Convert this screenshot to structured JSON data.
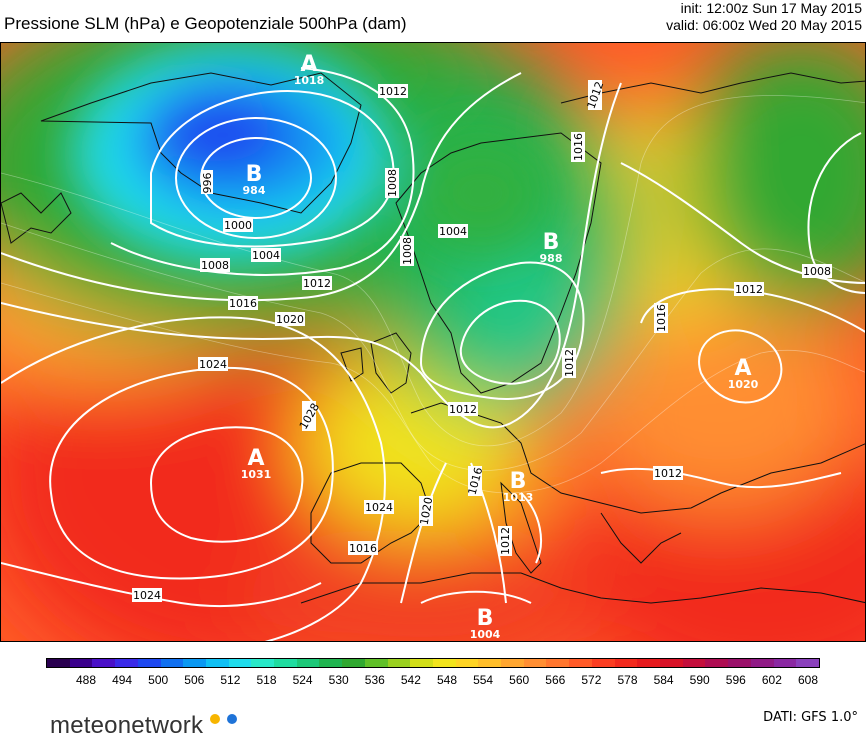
{
  "header": {
    "title": "Pressione SLM (hPa) e Geopotenziale 500hPa (dam)",
    "init": "init: 12:00z Sun 17 May 2015",
    "valid": "valid: 06:00z Wed 20 May 2015"
  },
  "map": {
    "pressure_centers": [
      {
        "type": "A",
        "value": "1018"
      },
      {
        "type": "B",
        "value": "984"
      },
      {
        "type": "B",
        "value": "988"
      },
      {
        "type": "A",
        "value": "1031"
      },
      {
        "type": "A",
        "value": "1020"
      },
      {
        "type": "B",
        "value": "1013"
      },
      {
        "type": "B",
        "value": "1004"
      }
    ],
    "isobar_labels": [
      "996",
      "1000",
      "1004",
      "1008",
      "1012",
      "1016",
      "1020",
      "1024",
      "1028",
      "1008",
      "1004",
      "1008",
      "1012",
      "1012",
      "1016",
      "1012",
      "1012",
      "1016",
      "1020",
      "1024",
      "1016",
      "1012",
      "1024",
      "1012",
      "1008",
      "1012",
      "1016",
      "1012"
    ]
  },
  "colorbar": {
    "ticks": [
      "488",
      "494",
      "500",
      "506",
      "512",
      "518",
      "524",
      "530",
      "536",
      "542",
      "548",
      "554",
      "560",
      "566",
      "572",
      "578",
      "584",
      "590",
      "596",
      "602",
      "608"
    ],
    "colors": [
      "#2a0050",
      "#3a008c",
      "#4a10c8",
      "#3a2ae8",
      "#1e48f0",
      "#1070f0",
      "#0a98f2",
      "#10c0f4",
      "#20dcec",
      "#28e8c8",
      "#20dca0",
      "#1cc878",
      "#20b450",
      "#30a830",
      "#60c028",
      "#9ad020",
      "#d2de18",
      "#f2e41c",
      "#fed424",
      "#ffbe2a",
      "#ffa630",
      "#ff8e32",
      "#ff762e",
      "#ff5a28",
      "#fb3e22",
      "#f22a1e",
      "#e61a1e",
      "#d81228",
      "#c40e3c",
      "#ae0c52",
      "#9a106a",
      "#901a86",
      "#8a28a2",
      "#8a40bc"
    ]
  },
  "brand": {
    "name": "meteonetwork",
    "dot_colors": [
      "#f7b500",
      "#1e73d8"
    ]
  },
  "credit": "DATI: GFS 1.0°"
}
